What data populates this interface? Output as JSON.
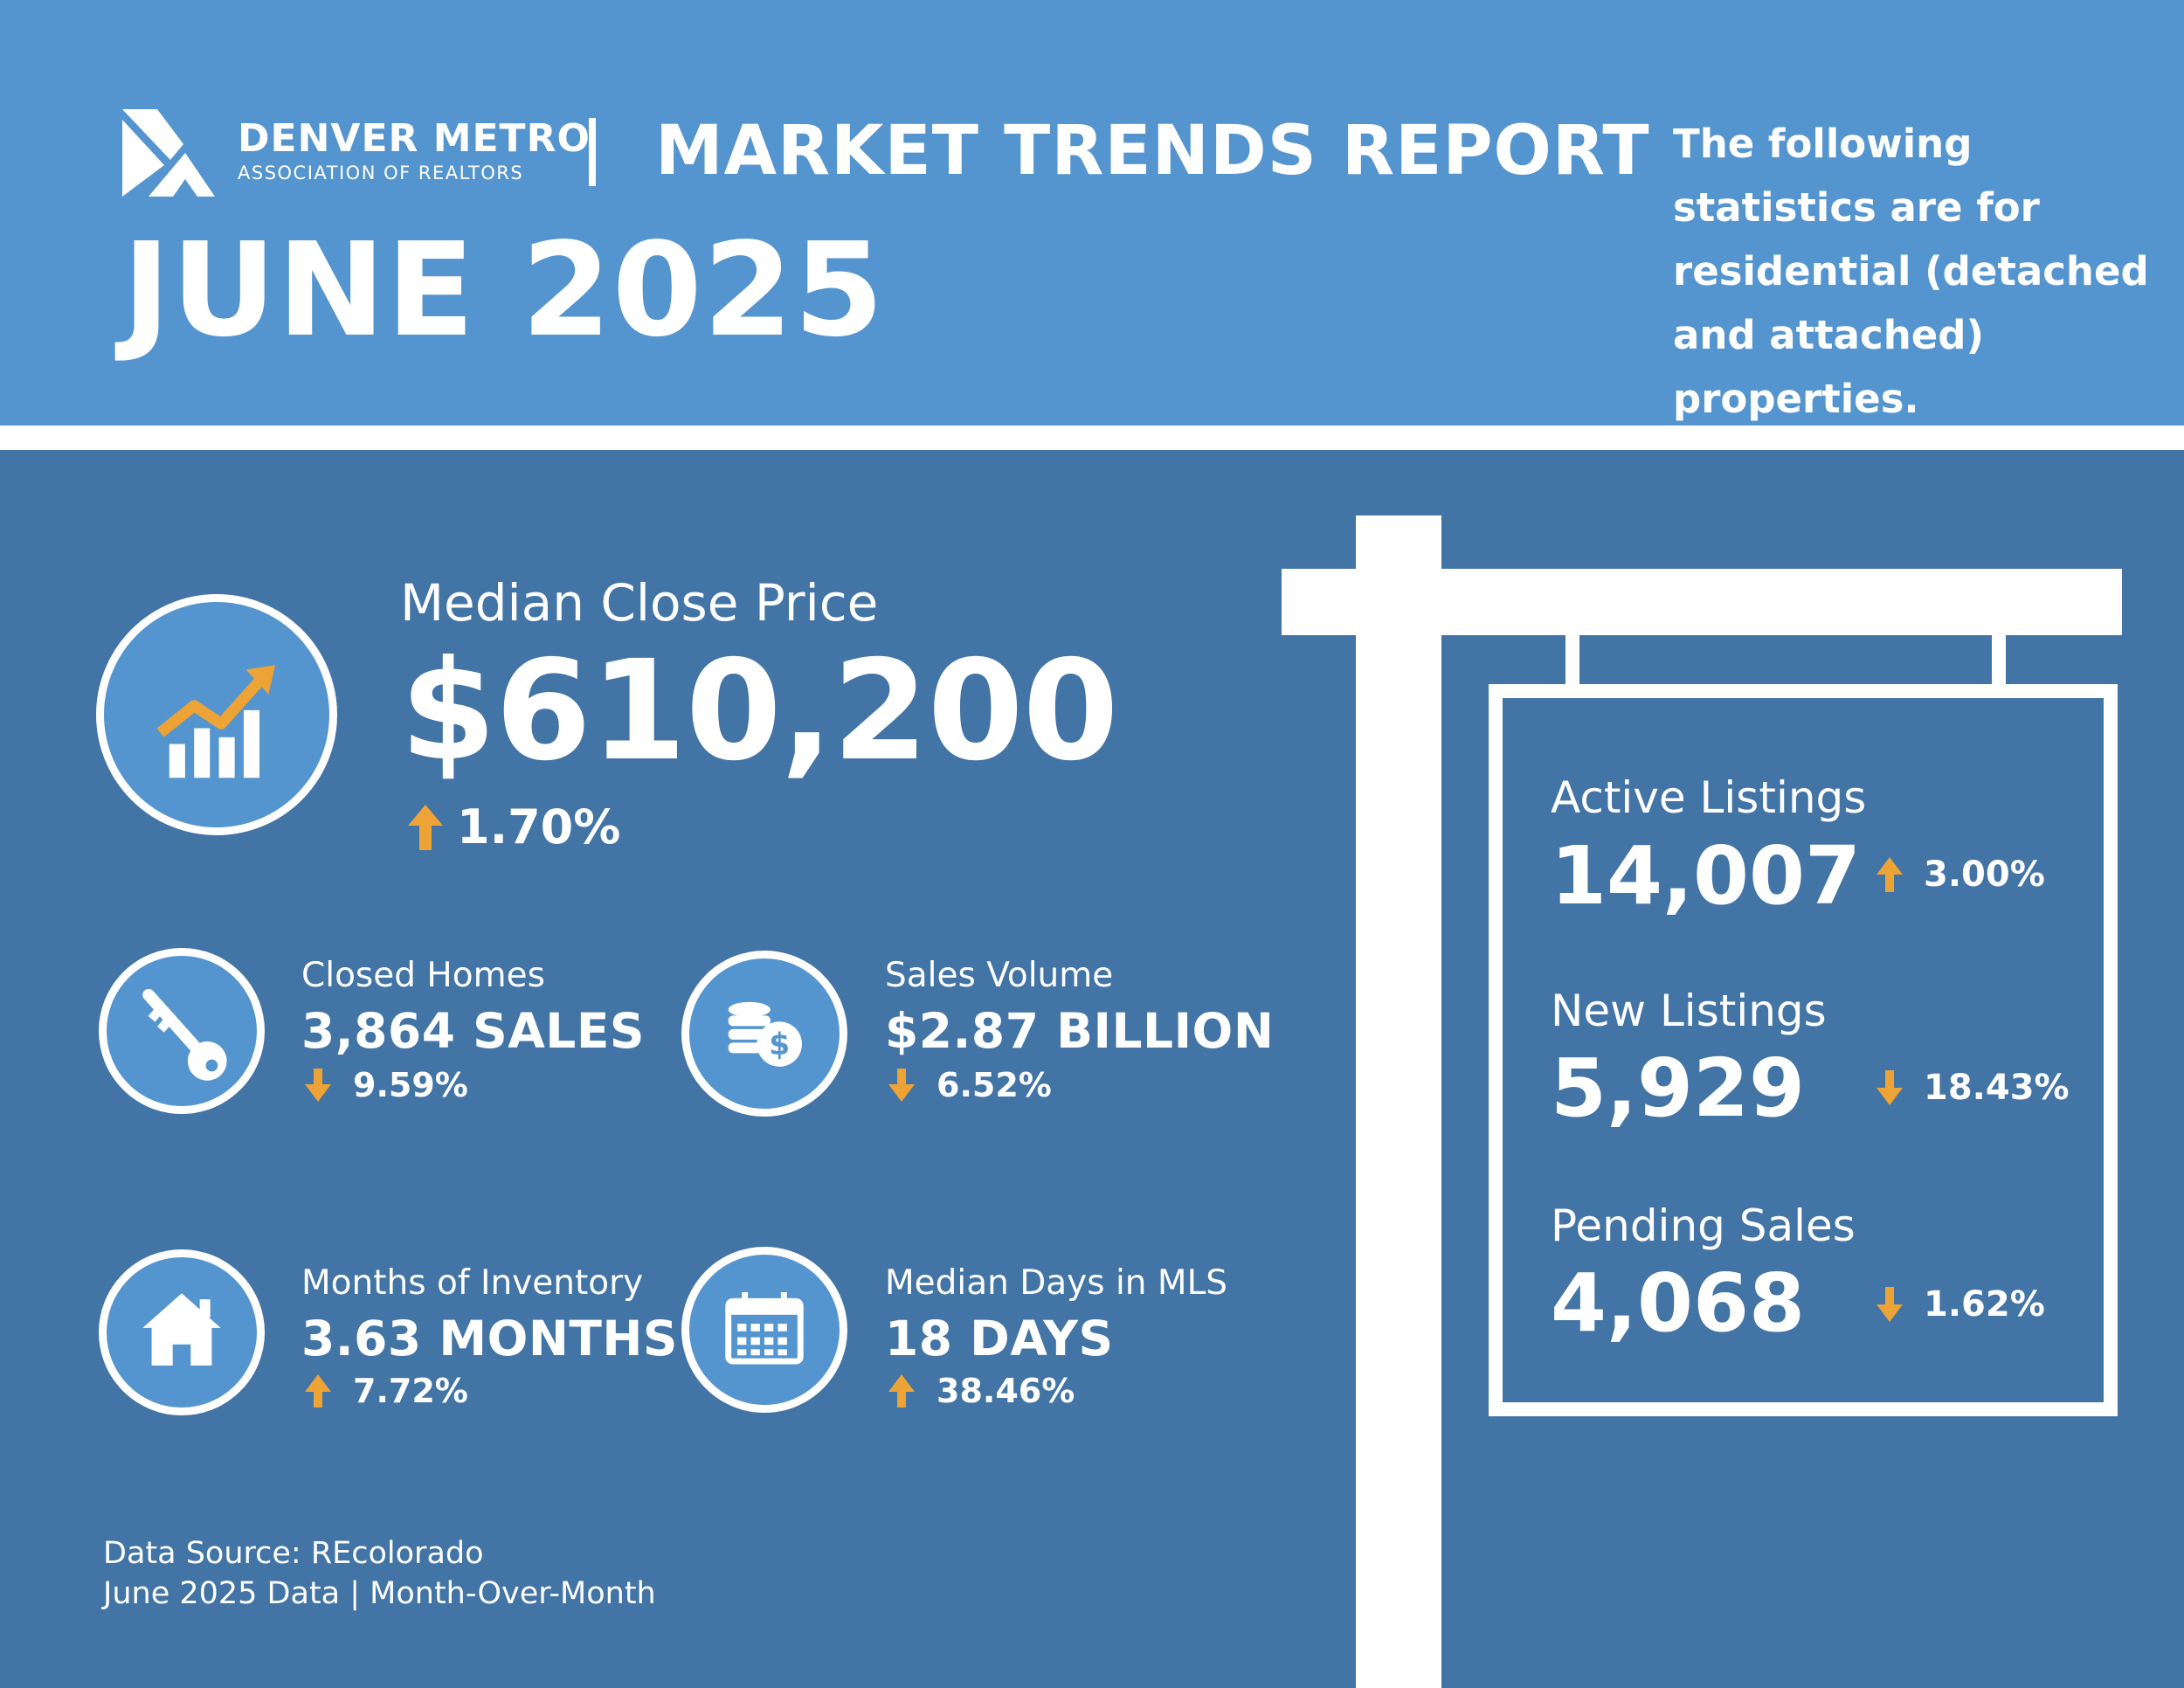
{
  "header": {
    "org_name": "DENVER METRO",
    "org_subtitle": "ASSOCIATION OF REALTORS",
    "report_title": "MARKET TRENDS REPORT",
    "month": "JUNE 2025",
    "note": "The following statistics are for residential (detached and attached) properties."
  },
  "colors": {
    "header_bg": "#5595cf",
    "body_bg": "#4274a5",
    "accent_arrow": "#eda335",
    "text": "#ffffff"
  },
  "median_close_price": {
    "label": "Median Close Price",
    "value": "$610,200",
    "direction": "up",
    "change": "1.70%",
    "icon": "bar-chart-trend-icon"
  },
  "stats": [
    {
      "label": "Closed Homes",
      "value": "3,864 SALES",
      "direction": "down",
      "change": "9.59%",
      "icon": "key-icon"
    },
    {
      "label": "Sales Volume",
      "value": "$2.87 BILLION",
      "direction": "down",
      "change": "6.52%",
      "icon": "coins-dollar-icon"
    },
    {
      "label": "Months of Inventory",
      "value": "3.63 MONTHS",
      "direction": "up",
      "change": "7.72%",
      "icon": "house-icon"
    },
    {
      "label": "Median Days in MLS",
      "value": "18 DAYS",
      "direction": "up",
      "change": "38.46%",
      "icon": "calendar-icon"
    }
  ],
  "sign": {
    "items": [
      {
        "label": "Active Listings",
        "value": "14,007",
        "direction": "up",
        "change": "3.00%"
      },
      {
        "label": "New Listings",
        "value": "5,929",
        "direction": "down",
        "change": "18.43%"
      },
      {
        "label": "Pending Sales",
        "value": "4,068",
        "direction": "down",
        "change": "1.62%"
      }
    ]
  },
  "footer": {
    "source": "Data Source: REcolorado",
    "period": "June 2025 Data | Month-Over-Month"
  }
}
